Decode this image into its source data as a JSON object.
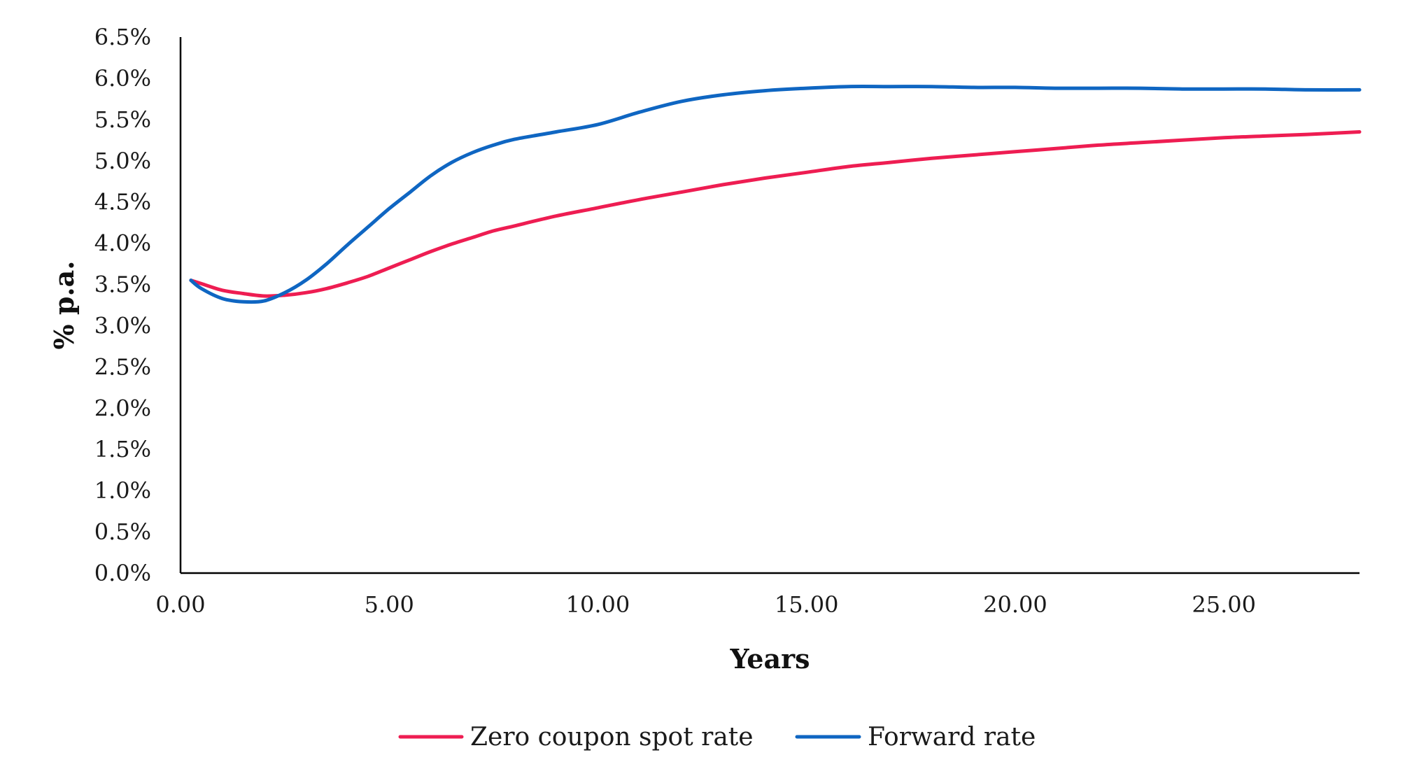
{
  "chart_data": {
    "type": "line",
    "title": "",
    "xlabel": "Years",
    "ylabel": "% p.a.",
    "xlim": [
      0,
      28.25
    ],
    "ylim": [
      0,
      6.5
    ],
    "x_ticks": [
      0,
      5,
      10,
      15,
      20,
      25
    ],
    "x_tick_labels": [
      "0.00",
      "5.00",
      "10.00",
      "15.00",
      "20.00",
      "25.00"
    ],
    "y_ticks": [
      0,
      0.5,
      1,
      1.5,
      2,
      2.5,
      3,
      3.5,
      4,
      4.5,
      5,
      5.5,
      6,
      6.5
    ],
    "y_tick_labels": [
      "0.0%",
      "0.5%",
      "1.0%",
      "1.5%",
      "2.0%",
      "2.5%",
      "3.0%",
      "3.5%",
      "4.0%",
      "4.5%",
      "5.0%",
      "5.5%",
      "6.0%",
      "6.5%"
    ],
    "grid": false,
    "legend_position": "bottom",
    "series": [
      {
        "name": "Zero coupon spot rate",
        "color": "#ee1d52",
        "x": [
          0.25,
          0.5,
          1,
          1.5,
          2,
          2.5,
          3,
          3.5,
          4,
          4.5,
          5,
          5.5,
          6,
          6.5,
          7,
          7.5,
          8,
          9,
          10,
          11,
          12,
          13,
          14,
          15,
          16,
          17,
          18,
          19,
          20,
          21,
          22,
          23,
          24,
          25,
          26,
          27,
          28.25
        ],
        "values": [
          3.55,
          3.51,
          3.43,
          3.39,
          3.36,
          3.37,
          3.4,
          3.45,
          3.52,
          3.6,
          3.7,
          3.8,
          3.9,
          3.99,
          4.07,
          4.15,
          4.21,
          4.33,
          4.43,
          4.53,
          4.62,
          4.71,
          4.79,
          4.86,
          4.93,
          4.98,
          5.03,
          5.07,
          5.11,
          5.15,
          5.19,
          5.22,
          5.25,
          5.28,
          5.3,
          5.32,
          5.35
        ]
      },
      {
        "name": "Forward rate",
        "color": "#0f66c2",
        "x": [
          0.25,
          0.5,
          1,
          1.5,
          2,
          2.5,
          3,
          3.5,
          4,
          4.5,
          5,
          5.5,
          6,
          6.5,
          7,
          7.5,
          8,
          9,
          10,
          11,
          12,
          13,
          14,
          15,
          16,
          17,
          18,
          19,
          20,
          21,
          22,
          23,
          24,
          25,
          26,
          27,
          28.25
        ],
        "values": [
          3.55,
          3.45,
          3.33,
          3.29,
          3.3,
          3.4,
          3.55,
          3.75,
          3.98,
          4.2,
          4.42,
          4.62,
          4.82,
          4.98,
          5.1,
          5.19,
          5.26,
          5.35,
          5.44,
          5.59,
          5.72,
          5.8,
          5.85,
          5.88,
          5.9,
          5.9,
          5.9,
          5.89,
          5.89,
          5.88,
          5.88,
          5.88,
          5.87,
          5.87,
          5.87,
          5.86,
          5.86
        ]
      }
    ]
  }
}
